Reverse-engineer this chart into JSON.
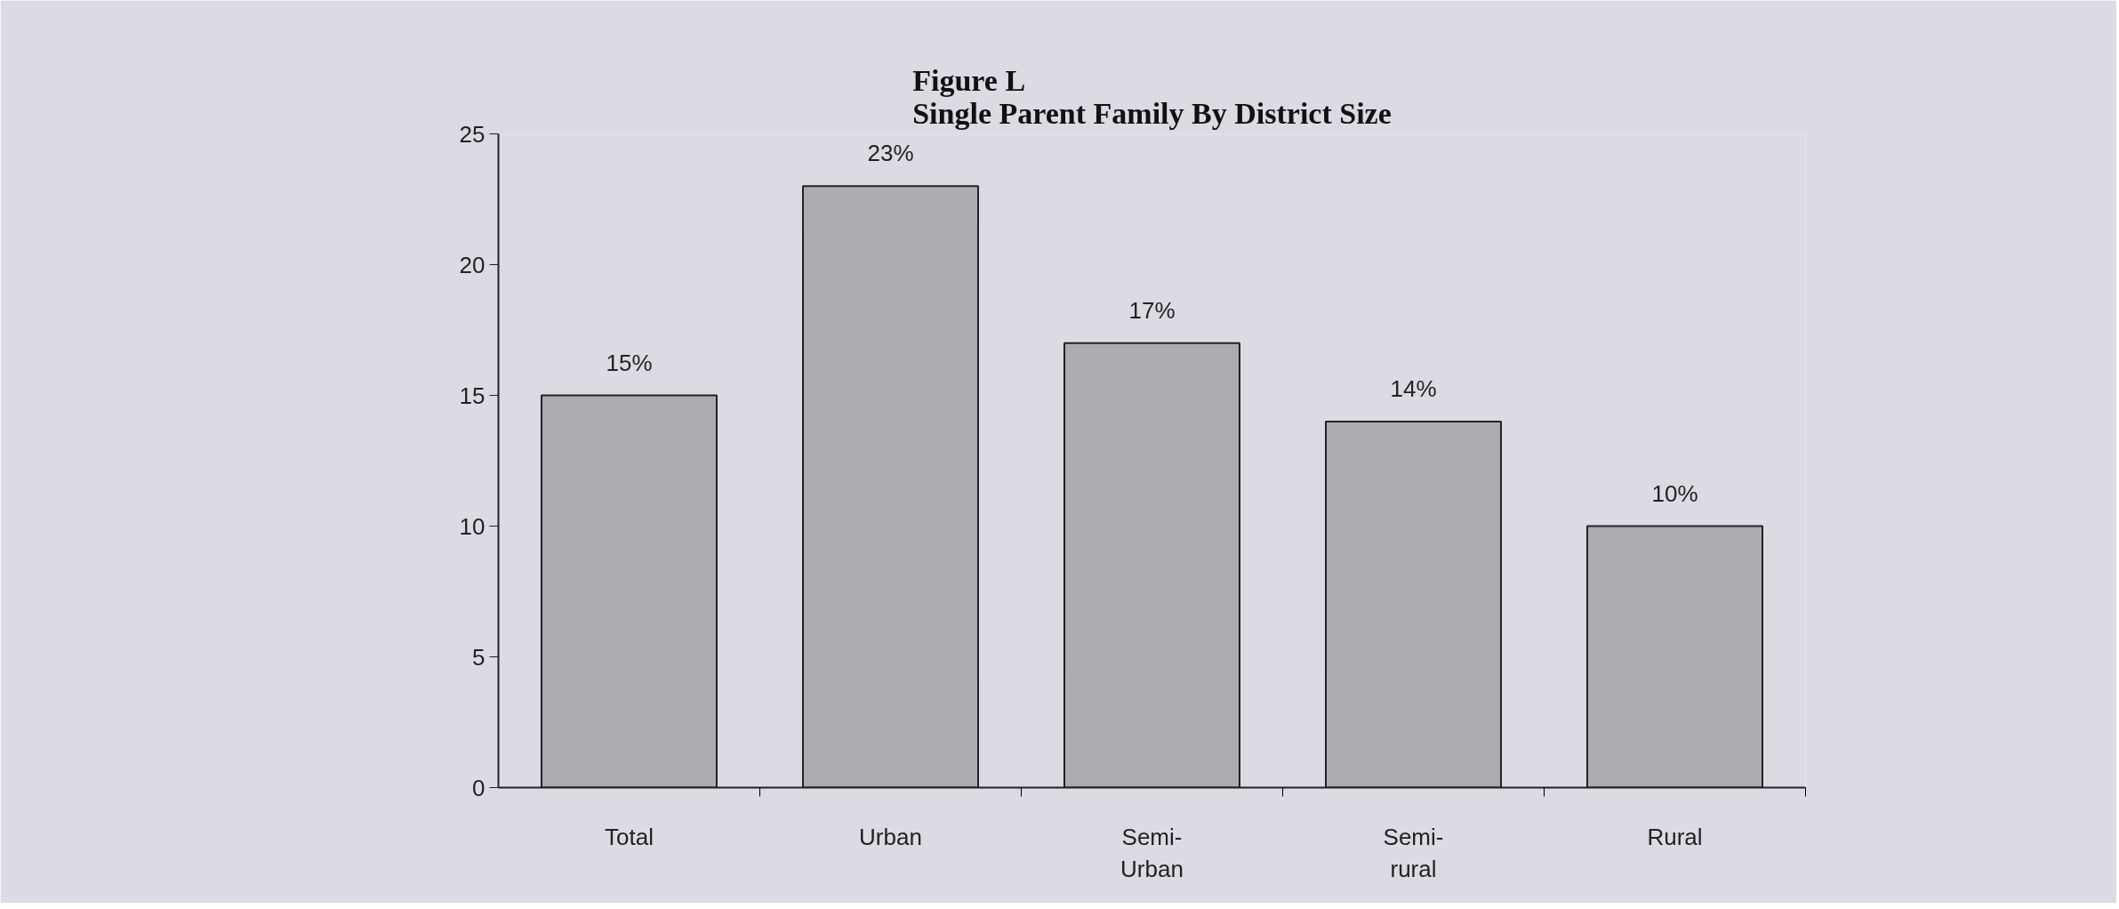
{
  "chart_data": {
    "type": "bar",
    "title": "Figure L\nSingle Parent Family By District Size",
    "categories": [
      "Total",
      "Urban",
      "Semi-\nUrban",
      "Semi-\nrural",
      "Rural"
    ],
    "values": [
      15,
      23,
      17,
      14,
      10
    ],
    "value_labels": [
      "15%",
      "23%",
      "17%",
      "14%",
      "10%"
    ],
    "color": "#ababb0",
    "ylim": [
      0,
      25
    ],
    "yticks": [
      0,
      5,
      10,
      15,
      20,
      25
    ],
    "grid": false
  }
}
